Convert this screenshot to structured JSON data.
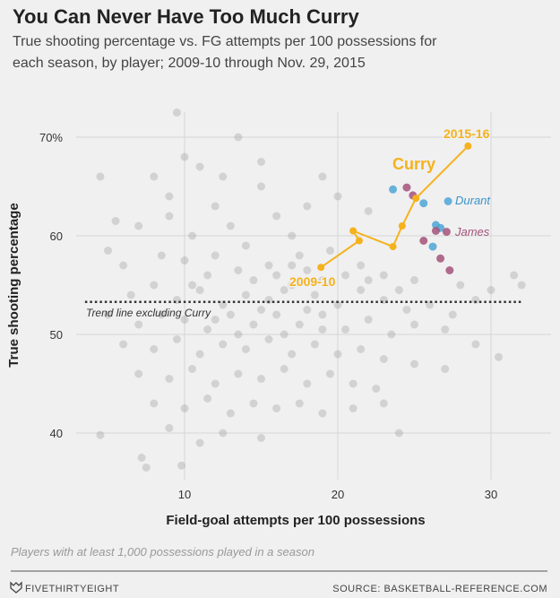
{
  "header": {
    "title": "You Can Never Have Too Much Curry",
    "subtitle_line1": "True shooting percentage vs. FG attempts per 100 possessions for",
    "subtitle_line2": "each season, by player; 2009-10 through Nov. 29, 2015"
  },
  "chart_data": {
    "type": "scatter",
    "xlabel": "Field-goal attempts per 100 possessions",
    "ylabel": "True shooting percentage",
    "xlim": [
      3,
      33
    ],
    "ylim": [
      35,
      73
    ],
    "x_ticks": [
      {
        "value": 10,
        "label": "10"
      },
      {
        "value": 20,
        "label": "20"
      },
      {
        "value": 30,
        "label": "30"
      }
    ],
    "y_ticks": [
      {
        "value": 70,
        "label": "70%"
      },
      {
        "value": 60,
        "label": "60"
      },
      {
        "value": 50,
        "label": "50"
      },
      {
        "value": 40,
        "label": "40"
      }
    ],
    "grid": true,
    "trend_line": {
      "label": "Trend line excluding Curry",
      "y": 53.3,
      "x_range": [
        3.5,
        32
      ]
    },
    "colors": {
      "curry": "#f5b21c",
      "durant": "#4ea6d6",
      "james": "#a4527a",
      "others": "#9a9a9a"
    },
    "series": [
      {
        "name": "Curry",
        "start_label": "2009-10",
        "end_label": "2015-16",
        "points": [
          [
            18.9,
            56.8
          ],
          [
            21.4,
            59.5
          ],
          [
            21.0,
            60.5
          ],
          [
            23.6,
            58.9
          ],
          [
            24.2,
            61.0
          ],
          [
            25.1,
            63.8
          ],
          [
            28.5,
            69.1
          ]
        ]
      },
      {
        "name": "Durant",
        "points": [
          [
            23.6,
            64.7
          ],
          [
            25.6,
            63.3
          ],
          [
            27.2,
            63.5
          ],
          [
            26.4,
            61.1
          ],
          [
            26.7,
            60.8
          ],
          [
            26.2,
            58.9
          ]
        ]
      },
      {
        "name": "James",
        "points": [
          [
            24.5,
            64.9
          ],
          [
            24.9,
            64.1
          ],
          [
            26.4,
            60.5
          ],
          [
            27.1,
            60.4
          ],
          [
            25.6,
            59.5
          ],
          [
            26.7,
            57.7
          ],
          [
            27.3,
            56.5
          ]
        ]
      },
      {
        "points": [
          [
            9.5,
            72.5
          ],
          [
            13.5,
            70
          ],
          [
            8,
            66
          ],
          [
            11,
            67
          ],
          [
            15,
            65
          ],
          [
            12,
            63
          ],
          [
            7,
            61
          ],
          [
            9,
            62
          ],
          [
            10.5,
            60
          ],
          [
            13,
            61
          ],
          [
            16,
            62
          ],
          [
            18,
            63
          ],
          [
            20,
            64
          ],
          [
            22,
            62.5
          ],
          [
            17,
            60
          ],
          [
            14,
            59
          ],
          [
            12,
            58
          ],
          [
            10,
            57.5
          ],
          [
            8.5,
            58
          ],
          [
            6,
            57
          ],
          [
            5,
            58.5
          ],
          [
            11.5,
            56
          ],
          [
            13.5,
            56.5
          ],
          [
            15.5,
            57
          ],
          [
            17.5,
            58
          ],
          [
            19.5,
            58.5
          ],
          [
            21.5,
            57
          ],
          [
            23,
            56
          ],
          [
            25,
            55.5
          ],
          [
            28,
            55
          ],
          [
            30,
            54.5
          ],
          [
            31.5,
            56
          ],
          [
            6.5,
            54
          ],
          [
            8,
            55
          ],
          [
            9.5,
            53.5
          ],
          [
            11,
            54.5
          ],
          [
            12.5,
            53
          ],
          [
            14,
            54
          ],
          [
            15.5,
            53.5
          ],
          [
            17,
            55
          ],
          [
            18.5,
            54
          ],
          [
            20,
            53
          ],
          [
            21.5,
            54.5
          ],
          [
            23,
            53.5
          ],
          [
            24.5,
            52.5
          ],
          [
            26,
            53
          ],
          [
            27.5,
            52
          ],
          [
            29,
            53.5
          ],
          [
            5,
            52
          ],
          [
            7,
            51
          ],
          [
            8.5,
            52
          ],
          [
            10,
            51.5
          ],
          [
            11.5,
            50.5
          ],
          [
            13,
            52
          ],
          [
            14.5,
            51
          ],
          [
            16,
            52
          ],
          [
            17.5,
            51
          ],
          [
            19,
            52
          ],
          [
            20.5,
            50.5
          ],
          [
            22,
            51.5
          ],
          [
            23.5,
            50
          ],
          [
            25,
            51
          ],
          [
            27,
            50.5
          ],
          [
            29,
            49
          ],
          [
            6,
            49
          ],
          [
            8,
            48.5
          ],
          [
            9.5,
            49.5
          ],
          [
            11,
            48
          ],
          [
            12.5,
            49
          ],
          [
            14,
            48.5
          ],
          [
            15.5,
            49.5
          ],
          [
            17,
            48
          ],
          [
            18.5,
            49
          ],
          [
            20,
            48
          ],
          [
            21.5,
            48.5
          ],
          [
            23,
            47.5
          ],
          [
            25,
            47
          ],
          [
            27,
            46.5
          ],
          [
            30.5,
            47.7
          ],
          [
            7,
            46
          ],
          [
            9,
            45.5
          ],
          [
            10.5,
            46.5
          ],
          [
            12,
            45
          ],
          [
            13.5,
            46
          ],
          [
            15,
            45.5
          ],
          [
            16.5,
            46.5
          ],
          [
            18,
            45
          ],
          [
            19.5,
            46
          ],
          [
            21,
            45
          ],
          [
            22.5,
            44.5
          ],
          [
            8,
            43
          ],
          [
            10,
            42.5
          ],
          [
            11.5,
            43.5
          ],
          [
            13,
            42
          ],
          [
            14.5,
            43
          ],
          [
            16,
            42.5
          ],
          [
            17.5,
            43
          ],
          [
            19,
            42
          ],
          [
            21,
            42.5
          ],
          [
            23,
            43
          ],
          [
            24,
            40
          ],
          [
            9,
            40.5
          ],
          [
            11,
            39
          ],
          [
            12.5,
            40
          ],
          [
            15,
            39.5
          ],
          [
            7.2,
            37.5
          ],
          [
            7.5,
            36.5
          ],
          [
            4.5,
            39.8
          ],
          [
            9.8,
            36.7
          ],
          [
            16,
            56
          ],
          [
            17,
            57
          ],
          [
            18,
            56.5
          ],
          [
            14.5,
            55.5
          ],
          [
            19,
            55.5
          ],
          [
            16.5,
            54.5
          ],
          [
            18,
            52.5
          ],
          [
            15,
            52.5
          ],
          [
            16.5,
            50
          ],
          [
            19,
            50.5
          ],
          [
            13.5,
            50
          ],
          [
            12,
            51.5
          ],
          [
            10.5,
            55
          ],
          [
            22,
            55.5
          ],
          [
            24,
            54.5
          ],
          [
            20.5,
            56
          ],
          [
            9,
            64
          ],
          [
            12.5,
            66
          ],
          [
            15,
            67.5
          ],
          [
            19,
            66
          ],
          [
            10,
            68
          ],
          [
            5.5,
            61.5
          ],
          [
            4.5,
            66
          ],
          [
            32,
            55
          ]
        ]
      }
    ]
  },
  "footer": {
    "note": "Players with at least 1,000 possessions played in a season",
    "brand": "FIVETHIRTYEIGHT",
    "source": "SOURCE: BASKETBALL-REFERENCE.COM"
  }
}
